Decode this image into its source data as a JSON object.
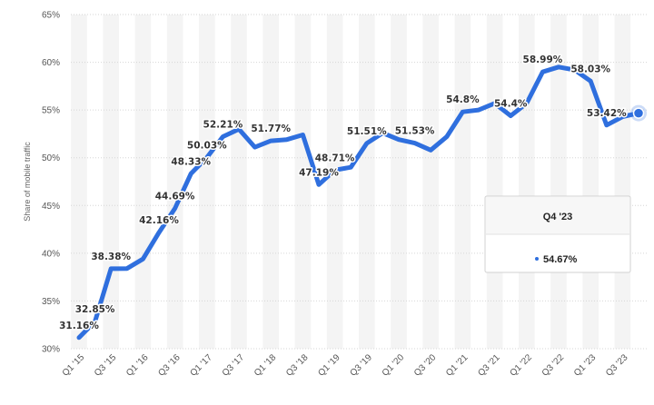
{
  "chart_data": {
    "type": "line",
    "ylabel": "Share of mobile traffic",
    "ylim": [
      30,
      65
    ],
    "yticks": [
      "30%",
      "35%",
      "40%",
      "45%",
      "50%",
      "55%",
      "60%",
      "65%"
    ],
    "categories": [
      "Q1 '15",
      "Q2 '15",
      "Q3 '15",
      "Q4 '15",
      "Q1 '16",
      "Q2 '16",
      "Q3 '16",
      "Q4 '16",
      "Q1 '17",
      "Q2 '17",
      "Q3 '17",
      "Q4 '17",
      "Q1 '18",
      "Q2 '18",
      "Q3 '18",
      "Q4 '18",
      "Q1 '19",
      "Q2 '19",
      "Q3 '19",
      "Q4 '19",
      "Q1 '20",
      "Q2 '20",
      "Q3 '20",
      "Q4 '20",
      "Q1 '21",
      "Q2 '21",
      "Q3 '21",
      "Q4 '21",
      "Q1 '22",
      "Q2 '22",
      "Q3 '22",
      "Q4 '22",
      "Q1 '23",
      "Q2 '23",
      "Q3 '23",
      "Q4 '23"
    ],
    "xtick_labels": [
      "Q1 '15",
      "Q3 '15",
      "Q1 '16",
      "Q3 '16",
      "Q1 '17",
      "Q3 '17",
      "Q1 '18",
      "Q3 '18",
      "Q1 '19",
      "Q3 '19",
      "Q1 '20",
      "Q3 '20",
      "Q1 '21",
      "Q3 '21",
      "Q1 '22",
      "Q3 '22",
      "Q1 '23",
      "Q3 '23"
    ],
    "values": [
      31.16,
      32.85,
      38.38,
      38.4,
      39.4,
      42.16,
      44.69,
      48.33,
      50.03,
      52.21,
      53.0,
      51.1,
      51.77,
      51.9,
      52.4,
      47.19,
      48.71,
      49.0,
      51.51,
      52.6,
      51.9,
      51.53,
      50.8,
      52.2,
      54.8,
      55.0,
      55.7,
      54.4,
      55.7,
      58.99,
      59.5,
      59.2,
      58.03,
      53.42,
      54.3,
      54.67
    ],
    "data_labels": [
      {
        "index": 0,
        "text": "31.16%"
      },
      {
        "index": 1,
        "text": "32.85%"
      },
      {
        "index": 2,
        "text": "38.38%"
      },
      {
        "index": 5,
        "text": "42.16%"
      },
      {
        "index": 6,
        "text": "44.69%"
      },
      {
        "index": 7,
        "text": "48.33%"
      },
      {
        "index": 8,
        "text": "50.03%"
      },
      {
        "index": 9,
        "text": "52.21%"
      },
      {
        "index": 12,
        "text": "51.77%"
      },
      {
        "index": 15,
        "text": "47.19%"
      },
      {
        "index": 16,
        "text": "48.71%"
      },
      {
        "index": 18,
        "text": "51.51%"
      },
      {
        "index": 21,
        "text": "51.53%"
      },
      {
        "index": 24,
        "text": "54.8%"
      },
      {
        "index": 27,
        "text": "54.4%"
      },
      {
        "index": 29,
        "text": "58.99%"
      },
      {
        "index": 32,
        "text": "58.03%"
      },
      {
        "index": 33,
        "text": "53.42%"
      }
    ],
    "grid": true,
    "line_color": "#2f6fde",
    "band_color": "#f4f4f4",
    "tooltip": {
      "title": "Q4 '23",
      "value": "54.67%",
      "index": 35
    }
  }
}
